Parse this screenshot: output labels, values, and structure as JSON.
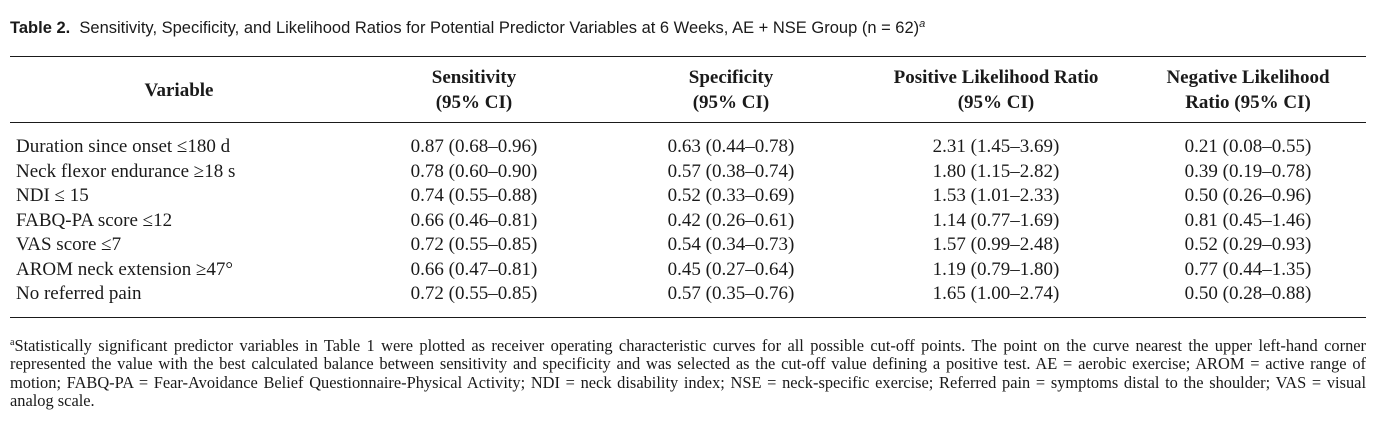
{
  "caption": {
    "label": "Table 2.",
    "text": "Sensitivity, Specificity, and Likelihood Ratios for Potential Predictor Variables at 6 Weeks, AE + NSE Group (n = 62)",
    "marker": "a"
  },
  "table": {
    "headers": [
      [
        "Variable"
      ],
      [
        "Sensitivity",
        "(95% CI)"
      ],
      [
        "Specificity",
        "(95% CI)"
      ],
      [
        "Positive Likelihood Ratio",
        "(95% CI)"
      ],
      [
        "Negative Likelihood",
        "Ratio (95% CI)"
      ]
    ],
    "rows": [
      [
        "Duration since onset ≤180 d",
        "0.87 (0.68–0.96)",
        "0.63 (0.44–0.78)",
        "2.31 (1.45–3.69)",
        "0.21 (0.08–0.55)"
      ],
      [
        "Neck flexor endurance ≥18 s",
        "0.78 (0.60–0.90)",
        "0.57 (0.38–0.74)",
        "1.80 (1.15–2.82)",
        "0.39 (0.19–0.78)"
      ],
      [
        "NDI ≤ 15",
        "0.74 (0.55–0.88)",
        "0.52 (0.33–0.69)",
        "1.53 (1.01–2.33)",
        "0.50 (0.26–0.96)"
      ],
      [
        "FABQ-PA score ≤12",
        "0.66 (0.46–0.81)",
        "0.42 (0.26–0.61)",
        "1.14 (0.77–1.69)",
        "0.81 (0.45–1.46)"
      ],
      [
        "VAS score ≤7",
        "0.72 (0.55–0.85)",
        "0.54 (0.34–0.73)",
        "1.57 (0.99–2.48)",
        "0.52 (0.29–0.93)"
      ],
      [
        "AROM neck extension ≥47°",
        "0.66 (0.47–0.81)",
        "0.45 (0.27–0.64)",
        "1.19 (0.79–1.80)",
        "0.77 (0.44–1.35)"
      ],
      [
        "No referred pain",
        "0.72 (0.55–0.85)",
        "0.57 (0.35–0.76)",
        "1.65 (1.00–2.74)",
        "0.50 (0.28–0.88)"
      ]
    ]
  },
  "footnote": {
    "marker": "a",
    "text": "Statistically significant predictor variables in Table 1 were plotted as receiver operating characteristic curves for all possible cut-off points. The point on the curve nearest the upper left-hand corner represented the value with the best calculated balance between sensitivity and specificity and was selected as the cut-off value defining a positive test. AE = aerobic exercise; AROM = active range of motion; FABQ-PA = Fear-Avoidance Belief Questionnaire-Physical Activity; NDI = neck disability index; NSE = neck-specific exercise; Referred pain = symptoms distal to the shoulder; VAS = visual analog scale."
  }
}
